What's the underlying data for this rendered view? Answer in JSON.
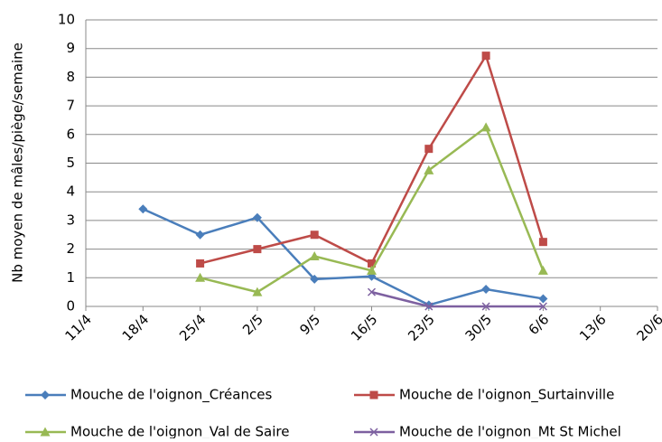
{
  "chart_data": {
    "type": "line",
    "y_label": "Nb moyen de mâles/piège/semaine",
    "categories": [
      "11/4",
      "18/4",
      "25/4",
      "2/5",
      "9/5",
      "16/5",
      "23/5",
      "30/5",
      "6/6",
      "13/6",
      "20/6"
    ],
    "series": [
      {
        "name": "Mouche de l'oignon_Créances",
        "color": "#4a7ebb",
        "marker": "diamond",
        "values": [
          null,
          3.4,
          2.5,
          3.1,
          0.95,
          1.05,
          0.05,
          0.6,
          0.27,
          null,
          null
        ]
      },
      {
        "name": "Mouche de l'oignon_Surtainville",
        "color": "#be4b48",
        "marker": "square",
        "values": [
          null,
          null,
          1.5,
          2.0,
          2.5,
          1.5,
          5.5,
          8.75,
          2.25,
          null,
          null
        ]
      },
      {
        "name": "Mouche de l'oignon_Val de Saire",
        "color": "#98b954",
        "marker": "triangle",
        "values": [
          null,
          null,
          1.0,
          0.5,
          1.75,
          1.25,
          4.75,
          6.25,
          1.25,
          null,
          null
        ]
      },
      {
        "name": "Mouche de l'oignon_Mt St Michel",
        "color": "#7d60a0",
        "marker": "x",
        "values": [
          null,
          null,
          null,
          null,
          null,
          0.5,
          0,
          0,
          0,
          null,
          null
        ]
      }
    ],
    "ylim": [
      0,
      10
    ],
    "yticks": [
      0,
      1,
      2,
      3,
      4,
      5,
      6,
      7,
      8,
      9,
      10
    ],
    "grid": true
  }
}
